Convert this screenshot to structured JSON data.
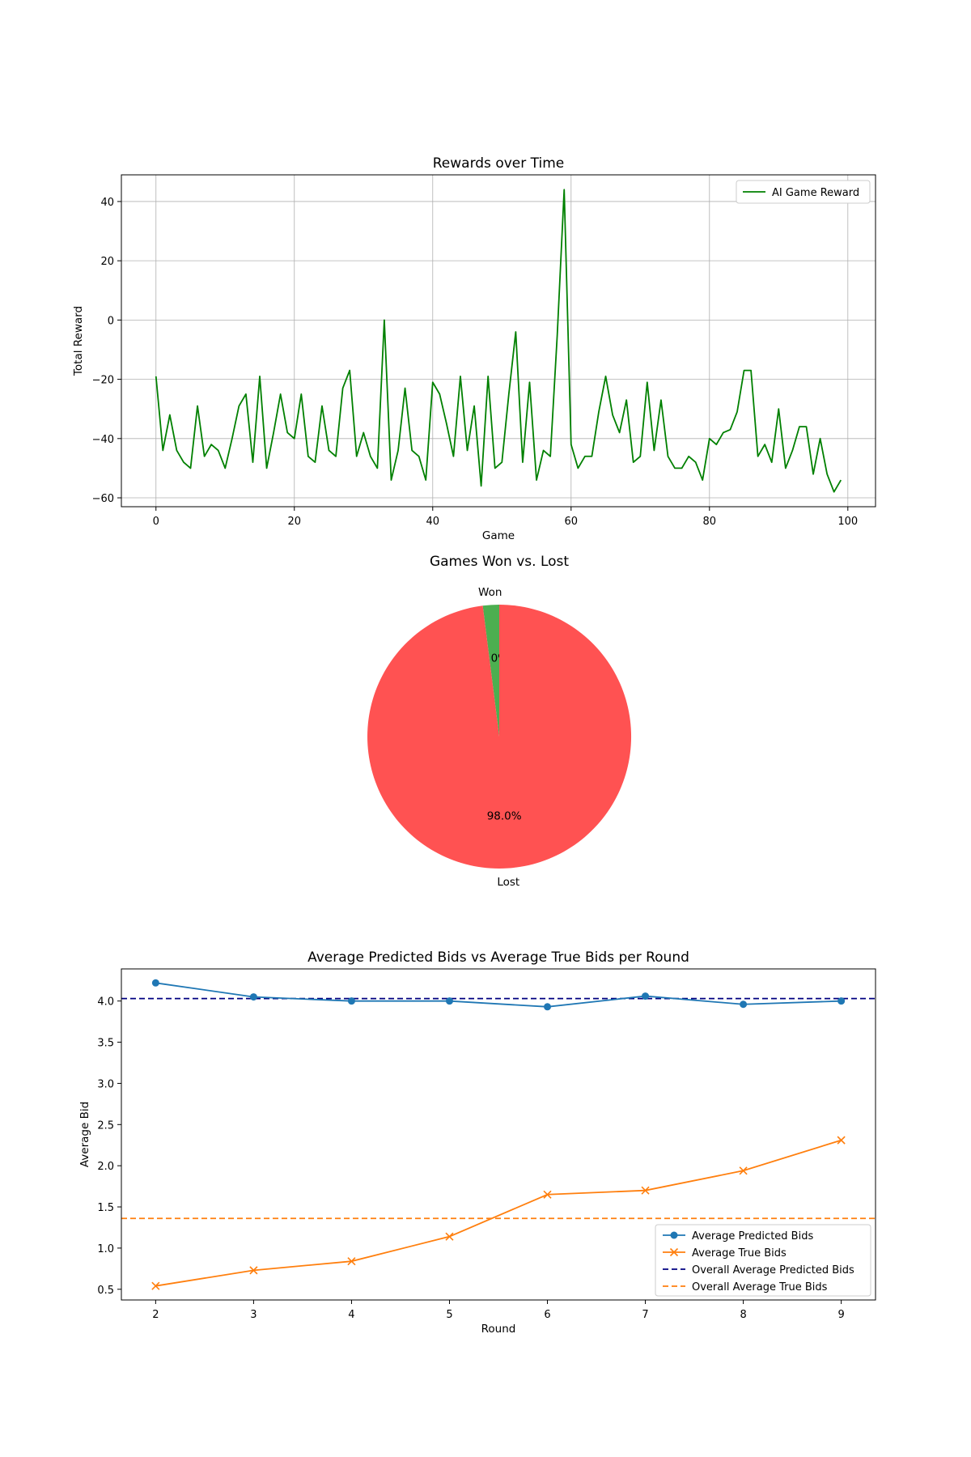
{
  "chart_data": [
    {
      "type": "line",
      "title": "Rewards over Time",
      "xlabel": "Game",
      "ylabel": "Total Reward",
      "xlim": [
        -5,
        104
      ],
      "ylim": [
        -63,
        49
      ],
      "xticks": [
        0,
        20,
        40,
        60,
        80,
        100
      ],
      "yticks": [
        -60,
        -40,
        -20,
        0,
        20,
        40
      ],
      "grid": true,
      "legend_position": "top-right",
      "series": [
        {
          "name": "AI Game Reward",
          "color": "#008000",
          "x": [
            0,
            1,
            2,
            3,
            4,
            5,
            6,
            7,
            8,
            9,
            10,
            11,
            12,
            13,
            14,
            15,
            16,
            17,
            18,
            19,
            20,
            21,
            22,
            23,
            24,
            25,
            26,
            27,
            28,
            29,
            30,
            31,
            32,
            33,
            34,
            35,
            36,
            37,
            38,
            39,
            40,
            41,
            42,
            43,
            44,
            45,
            46,
            47,
            48,
            49,
            50,
            51,
            52,
            53,
            54,
            55,
            56,
            57,
            58,
            59,
            60,
            61,
            62,
            63,
            64,
            65,
            66,
            67,
            68,
            69,
            70,
            71,
            72,
            73,
            74,
            75,
            76,
            77,
            78,
            79,
            80,
            81,
            82,
            83,
            84,
            85,
            86,
            87,
            88,
            89,
            90,
            91,
            92,
            93,
            94,
            95,
            96,
            97,
            98,
            99
          ],
          "values": [
            -19,
            -44,
            -32,
            -44,
            -48,
            -50,
            -29,
            -46,
            -42,
            -44,
            -50,
            -40,
            -29,
            -25,
            -48,
            -19,
            -50,
            -38,
            -25,
            -38,
            -40,
            -25,
            -46,
            -48,
            -29,
            -44,
            -46,
            -23,
            -17,
            -46,
            -38,
            -46,
            -50,
            0,
            -54,
            -44,
            -23,
            -44,
            -46,
            -54,
            -21,
            -25,
            -35,
            -46,
            -19,
            -44,
            -29,
            -56,
            -19,
            -50,
            -48,
            -25,
            -4,
            -48,
            -21,
            -54,
            -44,
            -46,
            -5,
            44,
            -42,
            -50,
            -46,
            -46,
            -31,
            -19,
            -32,
            -38,
            -27,
            -48,
            -46,
            -21,
            -44,
            -27,
            -46,
            -50,
            -50,
            -46,
            -48,
            -54,
            -40,
            -42,
            -38,
            -37,
            -31,
            -17,
            -17,
            -46,
            -42,
            -48,
            -30,
            -50,
            -44,
            -36,
            -36,
            -52,
            -40,
            -52,
            -58,
            -54
          ]
        }
      ]
    },
    {
      "type": "pie",
      "title": "Games Won vs. Lost",
      "start_angle": 90,
      "slices": [
        {
          "label": "Won",
          "value": 2.0,
          "pct_label": "2.0%",
          "color": "#4caf50"
        },
        {
          "label": "Lost",
          "value": 98.0,
          "pct_label": "98.0%",
          "color": "#ff5252"
        }
      ]
    },
    {
      "type": "line",
      "title": "Average Predicted Bids vs Average True Bids per Round",
      "xlabel": "Round",
      "ylabel": "Average Bid",
      "xlim": [
        1.65,
        9.35
      ],
      "ylim": [
        0.37,
        4.39
      ],
      "xticks": [
        2,
        3,
        4,
        5,
        6,
        7,
        8,
        9
      ],
      "yticks": [
        0.5,
        1.0,
        1.5,
        2.0,
        2.5,
        3.0,
        3.5,
        4.0
      ],
      "grid": false,
      "legend_position": "lower-right",
      "x": [
        2,
        3,
        4,
        5,
        6,
        7,
        8,
        9
      ],
      "series": [
        {
          "name": "Average Predicted Bids",
          "color": "#1f77b4",
          "marker": "circle",
          "values": [
            4.22,
            4.05,
            4.0,
            4.0,
            3.93,
            4.06,
            3.96,
            4.0
          ]
        },
        {
          "name": "Average True Bids",
          "color": "#ff7f0e",
          "marker": "x",
          "values": [
            0.54,
            0.73,
            0.84,
            1.14,
            1.65,
            1.7,
            1.94,
            2.31
          ]
        }
      ],
      "reference_lines": [
        {
          "name": "Overall Average Predicted Bids",
          "color": "#000080",
          "style": "dashed",
          "y": 4.03
        },
        {
          "name": "Overall Average True Bids",
          "color": "#ff7f0e",
          "style": "dashed",
          "y": 1.36
        }
      ]
    }
  ]
}
